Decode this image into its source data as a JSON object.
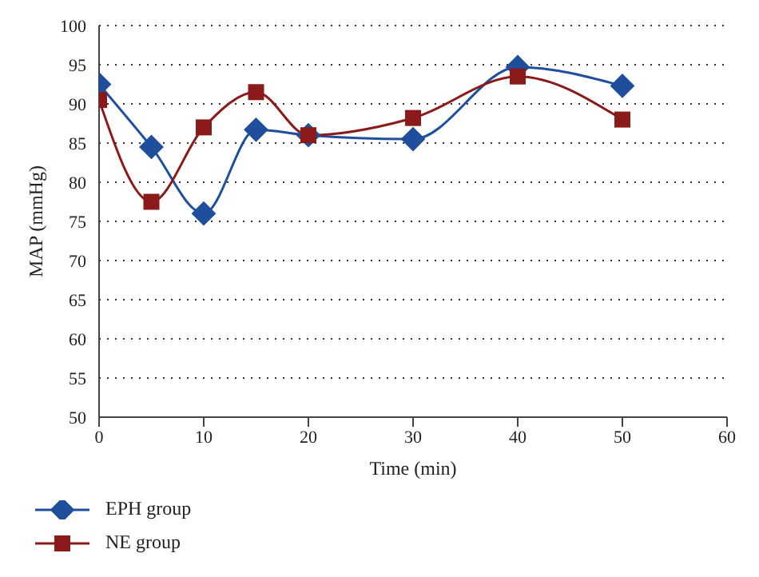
{
  "chart_data": {
    "type": "line",
    "xlabel": "Time (min)",
    "ylabel": "MAP (mmHg)",
    "xlim": [
      0,
      60
    ],
    "xticks": [
      0,
      10,
      20,
      30,
      40,
      50,
      60
    ],
    "ylim": [
      50,
      100
    ],
    "yticks": [
      50,
      55,
      60,
      65,
      70,
      75,
      80,
      85,
      90,
      95,
      100
    ],
    "grid": "y",
    "legend": "bottom left",
    "line_style": "solid",
    "x": [
      0,
      5,
      10,
      15,
      20,
      30,
      40,
      50
    ],
    "series": [
      {
        "name": "EPH group",
        "color": "#1f4e9c",
        "marker": "diamond",
        "values": [
          92.5,
          84.5,
          76,
          86.7,
          86,
          85.5,
          94.7,
          92.3
        ]
      },
      {
        "name": "NE group",
        "color": "#8b1a1a",
        "marker": "square",
        "values": [
          90.5,
          77.5,
          87,
          91.5,
          86,
          88.2,
          93.5,
          88
        ]
      }
    ]
  }
}
